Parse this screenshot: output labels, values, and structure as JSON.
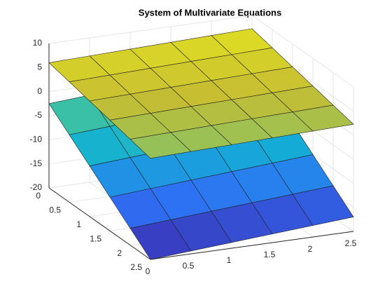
{
  "chart_data": {
    "type": "surface",
    "title": "System of Multivariate Equations",
    "x": [
      0,
      0.5,
      1,
      1.5,
      2,
      2.5
    ],
    "y": [
      0,
      0.5,
      1,
      1.5,
      2,
      2.5
    ],
    "xlim": [
      0,
      2.5
    ],
    "ylim": [
      0,
      2.5
    ],
    "zlim": [
      -20,
      10
    ],
    "xticks": [
      0,
      0.5,
      1,
      1.5,
      2,
      2.5
    ],
    "yticks": [
      0,
      0.5,
      1,
      1.5,
      2,
      2.5
    ],
    "zticks": [
      -20,
      -15,
      -10,
      -5,
      0,
      5,
      10
    ],
    "grid": true,
    "colormap": [
      "#3e26a8",
      "#2f70f5",
      "#12b1d4",
      "#4cc790",
      "#c6bd33",
      "#f9fb15"
    ],
    "edge_color": "#222222",
    "surfaces": [
      {
        "z": [
          [
            -2.5,
            -1.9,
            -1.3,
            -0.7,
            -0.1,
            0.5
          ],
          [
            -6,
            -5.4,
            -4.8,
            -4.2,
            -3.6,
            -3
          ],
          [
            -9.5,
            -8.9,
            -8.3,
            -7.7,
            -7.1,
            -6.5
          ],
          [
            -13,
            -12.4,
            -11.8,
            -11.2,
            -10.6,
            -10
          ],
          [
            -16.5,
            -15.9,
            -15.3,
            -14.7,
            -14.1,
            -13.5
          ],
          [
            -20,
            -19.4,
            -18.8,
            -18.2,
            -17.6,
            -17
          ]
        ]
      },
      {
        "z": [
          [
            6,
            6.25,
            6.5,
            6.75,
            7,
            7.25
          ],
          [
            5,
            5.25,
            5.5,
            5.75,
            6,
            6.25
          ],
          [
            4,
            4.25,
            4.5,
            4.75,
            5,
            5.25
          ],
          [
            3,
            3.25,
            3.5,
            3.75,
            4,
            4.25
          ],
          [
            2,
            2.25,
            2.5,
            2.75,
            3,
            3.25
          ],
          [
            1,
            1.25,
            1.5,
            1.75,
            2,
            2.25
          ]
        ]
      }
    ]
  }
}
